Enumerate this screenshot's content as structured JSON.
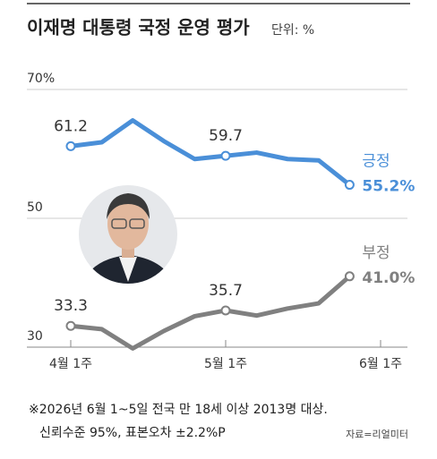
{
  "chart_data": {
    "type": "line",
    "title": "이재명 대통령 국정 운영 평가",
    "subtitle": "단위: %",
    "categories": [
      "4월 1주",
      null,
      null,
      null,
      null,
      "5월 1주",
      null,
      null,
      null,
      null,
      "6월 1주"
    ],
    "series": [
      {
        "name": "긍정",
        "color": "#4a8fd8",
        "values": [
          61.2,
          61.8,
          65.2,
          62.0,
          59.2,
          59.7,
          60.2,
          59.2,
          59.0,
          55.2,
          null
        ],
        "value_labels": [
          "61.2",
          null,
          null,
          null,
          null,
          "59.7",
          null,
          null,
          null,
          "55.2%",
          null
        ]
      },
      {
        "name": "부정",
        "color": "#808080",
        "values": [
          33.3,
          32.8,
          29.8,
          32.5,
          34.8,
          35.7,
          34.9,
          36.0,
          36.8,
          41.0,
          null
        ],
        "value_labels": [
          "33.3",
          null,
          null,
          null,
          null,
          "35.7",
          null,
          null,
          null,
          "41.0%",
          null
        ]
      }
    ],
    "ylim": [
      30,
      70
    ],
    "yticks": [
      30,
      50,
      {
        "value": 70,
        "label": "70%"
      }
    ],
    "grid": true,
    "footnotes": [
      "※2026년 6월 1~5일 전국 만 18세 이상 2013명 대상.",
      "신뢰수준 95%, 표본오차  ±2.2%P"
    ],
    "source": "자료=리얼미터"
  }
}
